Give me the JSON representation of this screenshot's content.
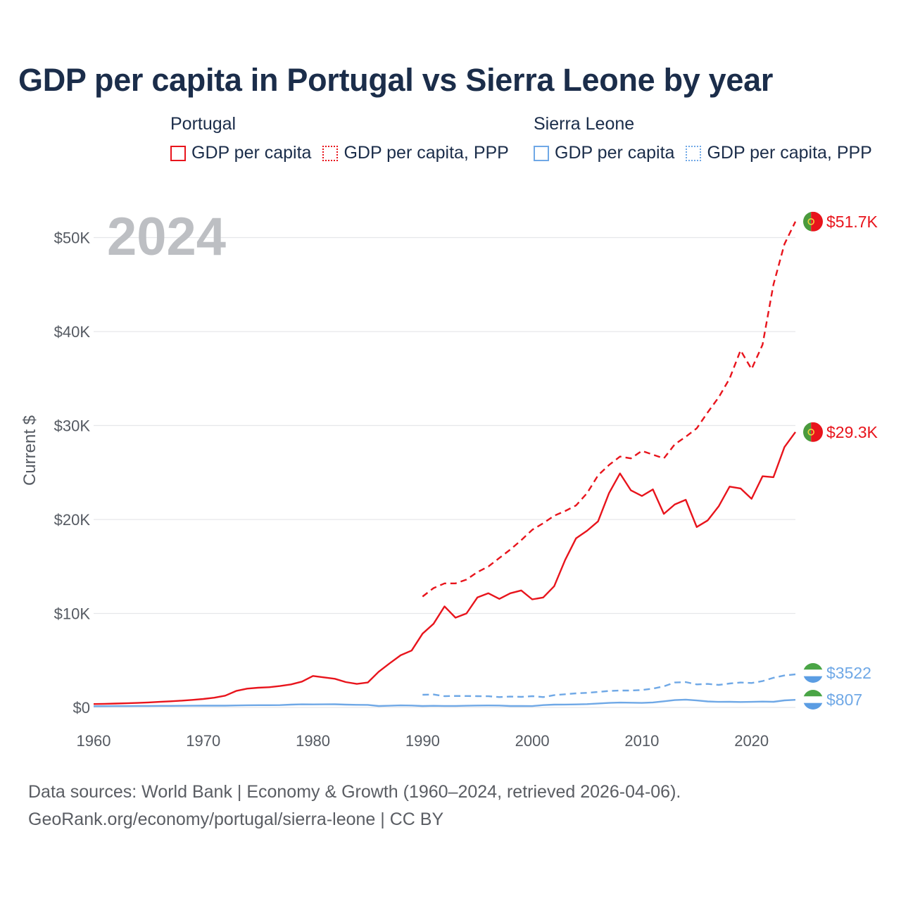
{
  "title": "GDP per capita in Portugal vs Sierra Leone by year",
  "legend": {
    "groups": [
      {
        "country": "Portugal",
        "items": [
          {
            "label": "GDP per capita",
            "color": "#e8141c",
            "style": "solid"
          },
          {
            "label": "GDP per capita, PPP",
            "color": "#e8141c",
            "style": "dotted"
          }
        ]
      },
      {
        "country": "Sierra Leone",
        "items": [
          {
            "label": "GDP per capita",
            "color": "#6fa8e6",
            "style": "solid"
          },
          {
            "label": "GDP per capita, PPP",
            "color": "#6fa8e6",
            "style": "dotted"
          }
        ]
      }
    ]
  },
  "footer": {
    "line1": "Data sources: World Bank | Economy & Growth (1960–2024, retrieved 2026-04-06).",
    "line2": "GeoRank.org/economy/portugal/sierra-leone | CC BY"
  },
  "chart_data": {
    "type": "line",
    "year_label": "2024",
    "ylabel": "Current $",
    "xlim": [
      1960,
      2024
    ],
    "ylim": [
      0,
      52000
    ],
    "xticks": [
      1960,
      1970,
      1980,
      1990,
      2000,
      2010,
      2020
    ],
    "yticks": [
      0,
      10000,
      20000,
      30000,
      40000,
      50000
    ],
    "ytick_labels": [
      "$0",
      "$10K",
      "$20K",
      "$30K",
      "$40K",
      "$50K"
    ],
    "grid": true,
    "series": [
      {
        "name": "Portugal GDP per capita, PPP",
        "country": "Portugal",
        "color": "#e8141c",
        "dash": true,
        "end_label": "$51.7K",
        "flag": "portugal",
        "x": [
          1990,
          1991,
          1992,
          1993,
          1994,
          1995,
          1996,
          1997,
          1998,
          1999,
          2000,
          2001,
          2002,
          2003,
          2004,
          2005,
          2006,
          2007,
          2008,
          2009,
          2010,
          2011,
          2012,
          2013,
          2014,
          2015,
          2016,
          2017,
          2018,
          2019,
          2020,
          2021,
          2022,
          2023,
          2024
        ],
        "values": [
          11800,
          12700,
          13200,
          13200,
          13600,
          14400,
          15000,
          15900,
          16800,
          17800,
          18900,
          19600,
          20400,
          20900,
          21500,
          22800,
          24700,
          25800,
          26700,
          26500,
          27300,
          26900,
          26500,
          28000,
          28800,
          29700,
          31400,
          33000,
          35000,
          38000,
          36000,
          38600,
          45000,
          49300,
          51700
        ]
      },
      {
        "name": "Portugal GDP per capita",
        "country": "Portugal",
        "color": "#e8141c",
        "dash": false,
        "end_label": "$29.3K",
        "flag": "portugal",
        "x": [
          1960,
          1961,
          1962,
          1963,
          1964,
          1965,
          1966,
          1967,
          1968,
          1969,
          1970,
          1971,
          1972,
          1973,
          1974,
          1975,
          1976,
          1977,
          1978,
          1979,
          1980,
          1981,
          1982,
          1983,
          1984,
          1985,
          1986,
          1987,
          1988,
          1989,
          1990,
          1991,
          1992,
          1993,
          1994,
          1995,
          1996,
          1997,
          1998,
          1999,
          2000,
          2001,
          2002,
          2003,
          2004,
          2005,
          2006,
          2007,
          2008,
          2009,
          2010,
          2011,
          2012,
          2013,
          2014,
          2015,
          2016,
          2017,
          2018,
          2019,
          2020,
          2021,
          2022,
          2023,
          2024
        ],
        "values": [
          360,
          380,
          410,
          440,
          480,
          530,
          590,
          650,
          720,
          800,
          900,
          1030,
          1250,
          1750,
          2000,
          2100,
          2150,
          2280,
          2450,
          2750,
          3350,
          3200,
          3050,
          2700,
          2500,
          2650,
          3800,
          4700,
          5550,
          6050,
          7850,
          8900,
          10750,
          9550,
          10000,
          11700,
          12150,
          11550,
          12150,
          12450,
          11500,
          11700,
          12900,
          15700,
          18000,
          18800,
          19800,
          22800,
          24900,
          23100,
          22500,
          23200,
          20600,
          21600,
          22100,
          19200,
          19900,
          21400,
          23500,
          23300,
          22200,
          24600,
          24500,
          27700,
          29300
        ]
      },
      {
        "name": "Sierra Leone GDP per capita, PPP",
        "country": "Sierra Leone",
        "color": "#6fa8e6",
        "dash": true,
        "end_label": "$3522",
        "flag": "sierra-leone",
        "x": [
          1990,
          1991,
          1992,
          1993,
          1994,
          1995,
          1996,
          1997,
          1998,
          1999,
          2000,
          2001,
          2002,
          2003,
          2004,
          2005,
          2006,
          2007,
          2008,
          2009,
          2010,
          2011,
          2012,
          2013,
          2014,
          2015,
          2016,
          2017,
          2018,
          2019,
          2020,
          2021,
          2022,
          2023,
          2024
        ],
        "values": [
          1350,
          1380,
          1200,
          1220,
          1210,
          1200,
          1190,
          1100,
          1150,
          1120,
          1200,
          1100,
          1300,
          1400,
          1500,
          1550,
          1650,
          1750,
          1800,
          1800,
          1850,
          2000,
          2250,
          2650,
          2700,
          2450,
          2500,
          2400,
          2550,
          2650,
          2600,
          2800,
          3150,
          3400,
          3522
        ]
      },
      {
        "name": "Sierra Leone GDP per capita",
        "country": "Sierra Leone",
        "color": "#6fa8e6",
        "dash": false,
        "end_label": "$807",
        "flag": "sierra-leone",
        "x": [
          1960,
          1961,
          1962,
          1963,
          1964,
          1965,
          1966,
          1967,
          1968,
          1969,
          1970,
          1971,
          1972,
          1973,
          1974,
          1975,
          1976,
          1977,
          1978,
          1979,
          1980,
          1981,
          1982,
          1983,
          1984,
          1985,
          1986,
          1987,
          1988,
          1989,
          1990,
          1991,
          1992,
          1993,
          1994,
          1995,
          1996,
          1997,
          1998,
          1999,
          2000,
          2001,
          2002,
          2003,
          2004,
          2005,
          2006,
          2007,
          2008,
          2009,
          2010,
          2011,
          2012,
          2013,
          2014,
          2015,
          2016,
          2017,
          2018,
          2019,
          2020,
          2021,
          2022,
          2023,
          2024
        ],
        "values": [
          130,
          135,
          140,
          145,
          155,
          160,
          165,
          165,
          170,
          180,
          190,
          185,
          190,
          210,
          230,
          240,
          240,
          250,
          300,
          330,
          320,
          330,
          340,
          300,
          280,
          270,
          150,
          180,
          220,
          200,
          150,
          170,
          160,
          160,
          180,
          200,
          210,
          200,
          150,
          150,
          140,
          250,
          300,
          310,
          320,
          350,
          420,
          480,
          520,
          500,
          480,
          530,
          650,
          780,
          830,
          740,
          640,
          590,
          600,
          580,
          590,
          620,
          600,
          750,
          807
        ]
      }
    ]
  }
}
